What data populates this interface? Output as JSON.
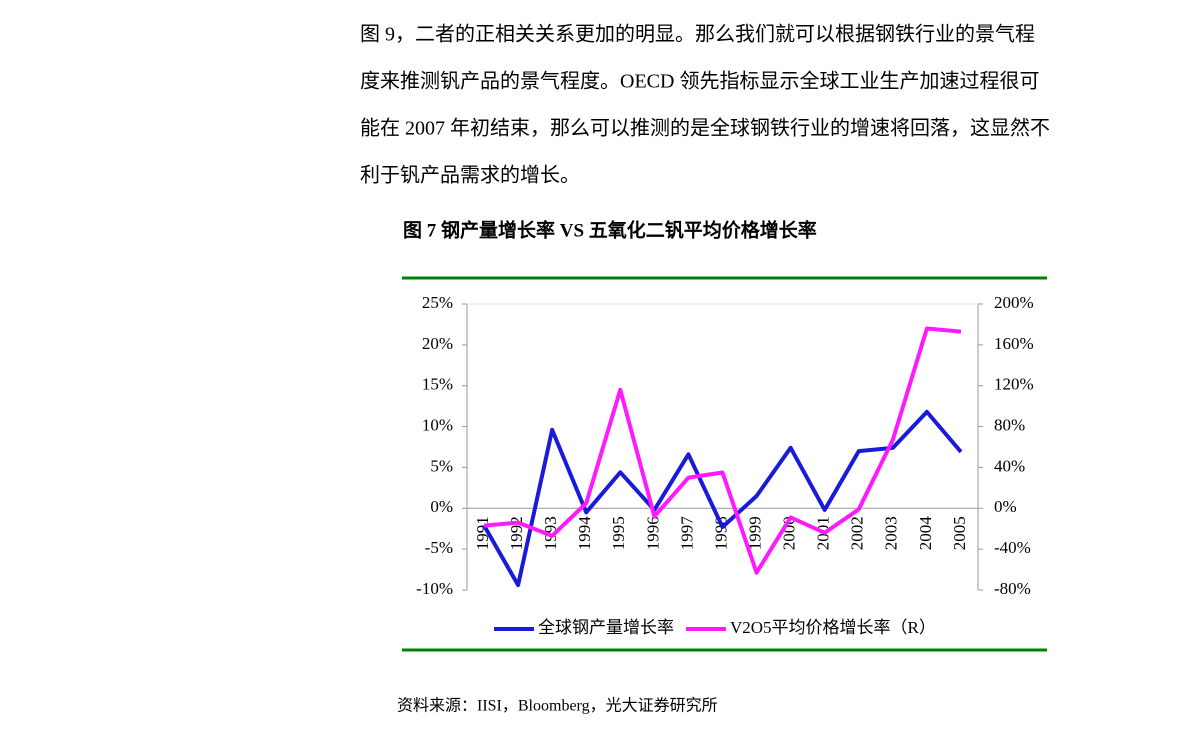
{
  "paragraph": [
    "图 9，二者的正相关关系更加的明显。那么我们就可以根据钢铁行业的景气程",
    "度来推测钒产品的景气程度。OECD 领先指标显示全球工业生产加速过程很可",
    "能在 2007 年初结束，那么可以推测的是全球钢铁行业的增速将回落，这显然不",
    "利于钒产品需求的增长。"
  ],
  "chart_data": {
    "type": "line",
    "title": "图 7 钢产量增长率 VS 五氧化二钒平均价格增长率",
    "categories": [
      "1991",
      "1992",
      "1993",
      "1994",
      "1995",
      "1996",
      "1997",
      "1998",
      "1999",
      "2000",
      "2001",
      "2002",
      "2003",
      "2004",
      "2005"
    ],
    "series": [
      {
        "name": "全球钢产量增长率",
        "color": "#1a1adb",
        "values": [
          -2.1,
          -9.4,
          9.6,
          -0.5,
          4.4,
          -0.2,
          6.6,
          -2.3,
          1.5,
          7.4,
          -0.2,
          7.0,
          7.4,
          11.8,
          6.9
        ]
      },
      {
        "name": "V2O5平均价格增长率（R）",
        "color": "#ff19ff",
        "axis": "y2",
        "values": [
          -17,
          -14,
          -27,
          5,
          116,
          -8,
          30,
          35,
          -63,
          -9,
          -24,
          -1,
          67,
          176,
          173
        ]
      }
    ],
    "ylim": [
      -10,
      25
    ],
    "yticks": [
      {
        "value": -10,
        "label": "-10%"
      },
      {
        "value": -5,
        "label": "-5%"
      },
      {
        "value": 0,
        "label": "0%"
      },
      {
        "value": 5,
        "label": "5%"
      },
      {
        "value": 10,
        "label": "10%"
      },
      {
        "value": 15,
        "label": "15%"
      },
      {
        "value": 20,
        "label": "20%"
      },
      {
        "value": 25,
        "label": "25%"
      }
    ],
    "y2lim": [
      -80,
      200
    ],
    "y2ticks": [
      {
        "value": -80,
        "label": "-80%"
      },
      {
        "value": -40,
        "label": "-40%"
      },
      {
        "value": 0,
        "label": "0%"
      },
      {
        "value": 40,
        "label": "40%"
      },
      {
        "value": 80,
        "label": "80%"
      },
      {
        "value": 120,
        "label": "120%"
      },
      {
        "value": 160,
        "label": "160%"
      },
      {
        "value": 200,
        "label": "200%"
      }
    ],
    "legend": "bottom"
  },
  "source": "资料来源：IISI，Bloomberg，光大证券研究所"
}
